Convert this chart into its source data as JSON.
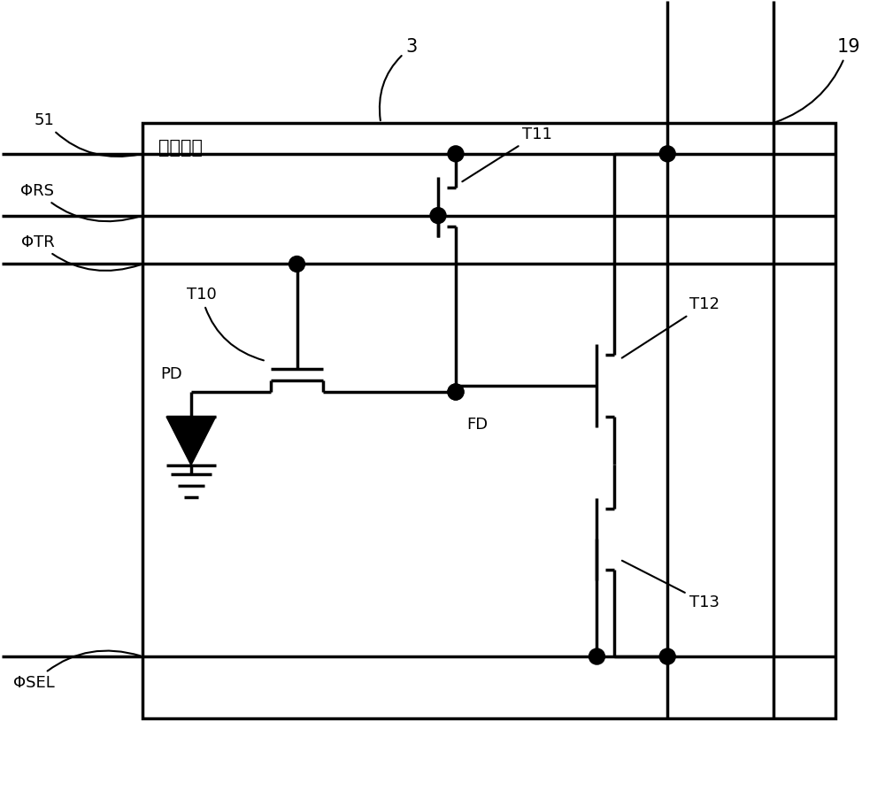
{
  "bg_color": "#ffffff",
  "line_color": "#000000",
  "line_width": 2.5,
  "fig_width": 10.0,
  "fig_height": 8.93,
  "pixel_circuit_label": "像素电路",
  "label_3": "3",
  "label_19": "19",
  "label_51": "51",
  "label_phiRS": "ΦRS",
  "label_phiTR": "ΦTR",
  "label_T10": "T10",
  "label_T11": "T11",
  "label_T12": "T12",
  "label_T13": "T13",
  "label_PD": "PD",
  "label_FD": "FD",
  "label_phiSEL": "ΦSEL"
}
